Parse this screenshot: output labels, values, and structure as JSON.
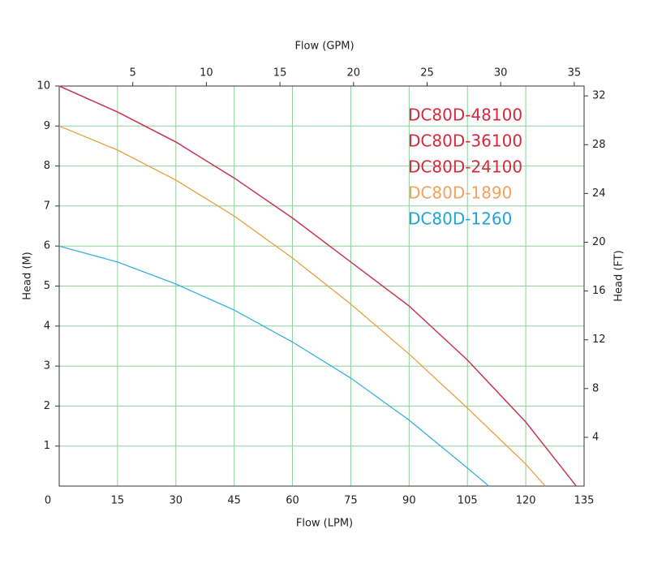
{
  "chart_data": {
    "type": "line",
    "xlabel": "Flow (LPM)",
    "x2label": "Flow (GPM)",
    "ylabel": "Head (M)",
    "y2label": "Head (FT)",
    "xlim": [
      0,
      135
    ],
    "xticks": [
      0,
      15,
      30,
      45,
      60,
      75,
      90,
      105,
      120,
      135
    ],
    "x2lim": [
      0,
      35.67
    ],
    "x2ticks": [
      5,
      10,
      15,
      20,
      25,
      30,
      35
    ],
    "ylim": [
      0,
      10
    ],
    "yticks": [
      1,
      2,
      3,
      4,
      5,
      6,
      7,
      8,
      9,
      10
    ],
    "y2lim": [
      0,
      32.81
    ],
    "y2ticks": [
      4,
      8,
      12,
      16,
      20,
      24,
      28,
      32
    ],
    "grid": true,
    "grid_color": "#8fcf9a",
    "series": [
      {
        "name": "DC80D-48100",
        "color": "#d42a3f",
        "line_color": "#c93a5c",
        "x": [
          0,
          15,
          30,
          45,
          60,
          75,
          90,
          105,
          120,
          133
        ],
        "values": [
          10,
          9.35,
          8.6,
          7.7,
          6.7,
          5.6,
          4.5,
          3.15,
          1.6,
          0
        ]
      },
      {
        "name": "DC80D-36100",
        "color": "#d42a3f",
        "line_color": "#c93a5c",
        "x": [
          0,
          15,
          30,
          45,
          60,
          75,
          90,
          105,
          120,
          133
        ],
        "values": [
          10,
          9.35,
          8.6,
          7.7,
          6.7,
          5.6,
          4.5,
          3.15,
          1.6,
          0
        ]
      },
      {
        "name": "DC80D-24100",
        "color": "#d42a3f",
        "line_color": "#c93a5c",
        "x": [
          0,
          15,
          30,
          45,
          60,
          75,
          90,
          105,
          120,
          133
        ],
        "values": [
          10,
          9.35,
          8.6,
          7.7,
          6.7,
          5.6,
          4.5,
          3.15,
          1.6,
          0
        ]
      },
      {
        "name": "DC80D-1890",
        "color": "#f2a25e",
        "line_color": "#e8a040",
        "x": [
          0,
          15,
          30,
          45,
          60,
          75,
          90,
          105,
          120,
          125
        ],
        "values": [
          9,
          8.4,
          7.65,
          6.75,
          5.7,
          4.55,
          3.3,
          1.95,
          0.55,
          0
        ]
      },
      {
        "name": "DC80D-1260",
        "color": "#1ea5d8",
        "line_color": "#3bafe0",
        "x": [
          0,
          15,
          30,
          45,
          60,
          75,
          90,
          105,
          110.5
        ],
        "values": [
          6,
          5.6,
          5.05,
          4.4,
          3.6,
          2.7,
          1.65,
          0.45,
          0
        ]
      }
    ]
  }
}
